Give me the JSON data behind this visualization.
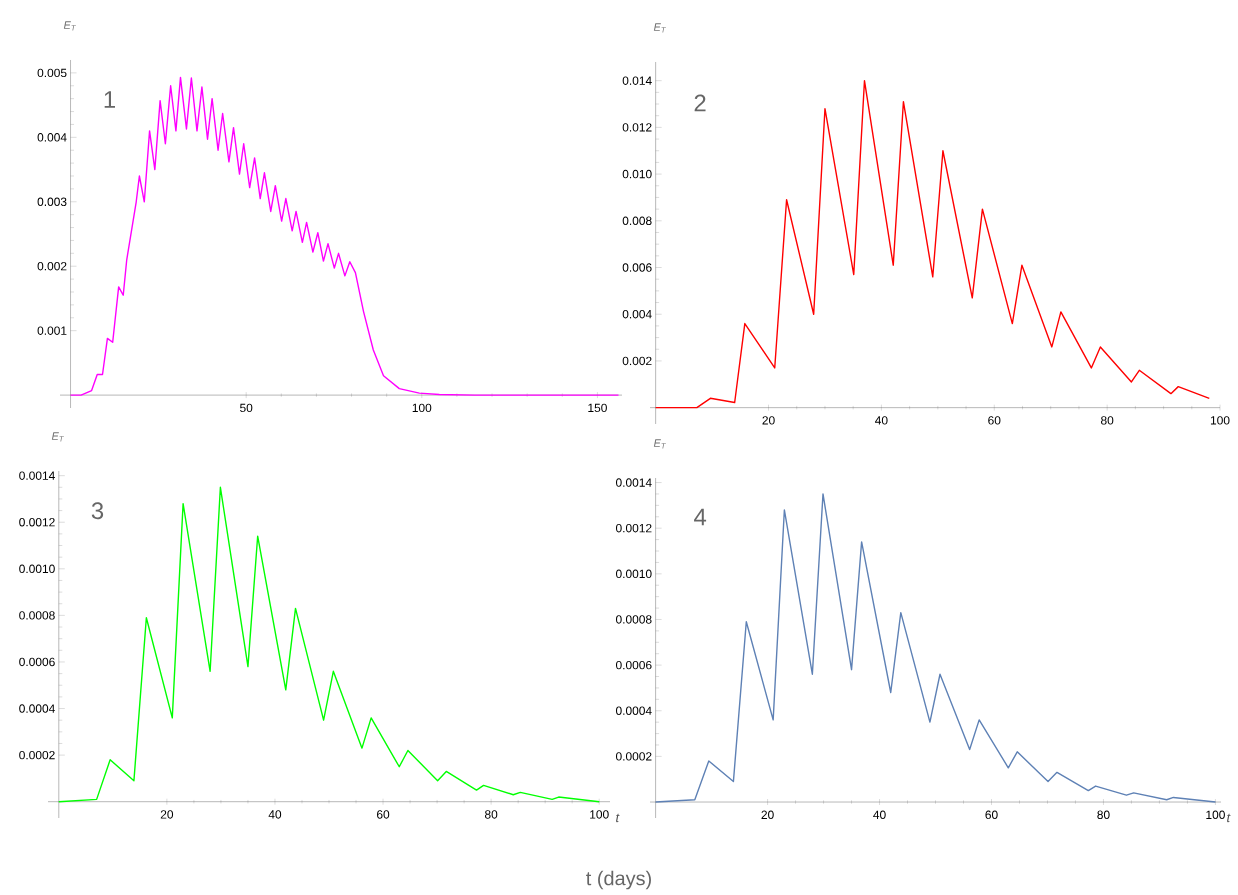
{
  "chart_data": [
    {
      "type": "line",
      "ylabel": "*E*$_{T}$",
      "annotations": [
        "1"
      ],
      "color": "#ff00ff",
      "x": [
        0,
        3,
        6,
        7.6,
        9.1,
        10.5,
        12,
        13.7,
        15,
        16,
        18.7,
        19.6,
        21,
        22.5,
        24,
        25.5,
        27,
        28.5,
        30,
        31.3,
        33,
        34.4,
        36,
        37.4,
        39,
        40.3,
        42,
        43.3,
        45.1,
        46.4,
        48.1,
        49.3,
        51,
        52.4,
        54,
        55.2,
        57,
        58.3,
        60.1,
        61.3,
        63.1,
        64.2,
        66,
        67.2,
        69,
        70.4,
        72,
        73.3,
        75.1,
        76.3,
        78.1,
        79.5,
        81.1,
        83.4,
        86.2,
        89.1,
        93.6,
        99.3,
        105,
        115,
        156
      ],
      "values": [
        0,
        0,
        7e-05,
        0.00032,
        0.00032,
        0.00088,
        0.00082,
        0.00168,
        0.00155,
        0.0021,
        0.003,
        0.0034,
        0.003,
        0.0041,
        0.0035,
        0.00457,
        0.0039,
        0.0048,
        0.0041,
        0.00493,
        0.00413,
        0.00492,
        0.0041,
        0.00478,
        0.00397,
        0.0046,
        0.0038,
        0.00437,
        0.00362,
        0.00415,
        0.00343,
        0.0039,
        0.00322,
        0.00368,
        0.00305,
        0.00345,
        0.00285,
        0.00325,
        0.0027,
        0.00305,
        0.00255,
        0.00285,
        0.00237,
        0.00268,
        0.00222,
        0.00252,
        0.00208,
        0.00235,
        0.00197,
        0.0022,
        0.00185,
        0.00207,
        0.0019,
        0.0013,
        0.0007,
        0.0003,
        0.0001,
        3e-05,
        1e-05,
        0,
        0
      ],
      "xlim": [
        -3,
        157
      ],
      "ylim": [
        -0.0002,
        0.0052
      ],
      "xticks": [
        50,
        100,
        150
      ],
      "yticks": [
        0.001,
        0.002,
        0.003,
        0.004,
        0.005
      ]
    },
    {
      "type": "line",
      "ylabel": "*E*$_{T}$",
      "annotations": [
        "2"
      ],
      "color": "#ff0000",
      "x": [
        0,
        7.3,
        9.7,
        14,
        15.8,
        21.1,
        23.2,
        28,
        30,
        35.1,
        37,
        42.1,
        43.9,
        49.1,
        50.9,
        56.1,
        57.9,
        63.2,
        64.9,
        70.2,
        71.8,
        77.2,
        78.8,
        84.3,
        85.7,
        91.3,
        92.6,
        98.1
      ],
      "values": [
        0,
        0,
        0.0004,
        0.00022,
        0.0036,
        0.0017,
        0.0089,
        0.004,
        0.0128,
        0.0057,
        0.014,
        0.0061,
        0.0131,
        0.0056,
        0.011,
        0.0047,
        0.0085,
        0.0036,
        0.0061,
        0.0026,
        0.0041,
        0.0017,
        0.0026,
        0.0011,
        0.0016,
        0.0006,
        0.0009,
        0.0004
      ],
      "xlim": [
        -1,
        100
      ],
      "ylim": [
        -0.0007,
        0.0148
      ],
      "xticks": [
        20,
        40,
        60,
        80,
        100
      ],
      "yticks": [
        {
          "value": 0.002,
          "label": "0.002"
        },
        {
          "value": 0.004,
          "label": "0.004"
        },
        {
          "value": 0.006,
          "label": "0.006"
        },
        {
          "value": 0.008,
          "label": "0.008"
        },
        {
          "value": 0.01,
          "label": "0.010"
        },
        {
          "value": 0.012,
          "label": "0.012"
        },
        {
          "value": 0.014,
          "label": "0.014"
        }
      ]
    },
    {
      "type": "line",
      "ylabel": "*E*$_{T}$",
      "xlabel": "t",
      "annotations": [
        "3",
        "t (days)"
      ],
      "color": "#00ff00",
      "x": [
        0,
        7,
        9.5,
        13.9,
        16.2,
        21,
        23,
        28,
        29.9,
        35,
        36.8,
        42,
        43.8,
        49,
        50.8,
        56.1,
        57.8,
        63,
        64.6,
        70.1,
        71.7,
        77.3,
        78.6,
        84.1,
        85.4,
        91.3,
        92.5,
        100
      ],
      "values": [
        0,
        1e-05,
        0.00018,
        9e-05,
        0.00079,
        0.00036,
        0.00128,
        0.00056,
        0.00135,
        0.00058,
        0.00114,
        0.00048,
        0.00083,
        0.00035,
        0.00056,
        0.00023,
        0.00036,
        0.00015,
        0.00022,
        9e-05,
        0.00013,
        5e-05,
        7e-05,
        3e-05,
        4e-05,
        1e-05,
        2e-05,
        0
      ],
      "xlim": [
        -2,
        102
      ],
      "ylim": [
        -7e-05,
        0.00142
      ],
      "xticks": [
        20,
        40,
        60,
        80,
        100
      ],
      "yticks": [
        0.0002,
        0.0004,
        0.0006,
        0.0008,
        {
          "value": 0.001,
          "label": "0.0010"
        },
        0.0012,
        0.0014
      ]
    },
    {
      "type": "line",
      "ylabel": "*E*$_{T}$",
      "xlabel": "t",
      "annotations": [
        "4"
      ],
      "color": "#5e81b5",
      "x": [
        0,
        7,
        9.5,
        13.9,
        16.2,
        21,
        23,
        28,
        29.9,
        35,
        36.8,
        42,
        43.8,
        49,
        50.8,
        56.1,
        57.8,
        63,
        64.6,
        70.1,
        71.7,
        77.3,
        78.6,
        84.1,
        85.4,
        91.3,
        92.5,
        100
      ],
      "values": [
        0,
        1e-05,
        0.00018,
        9e-05,
        0.00079,
        0.00036,
        0.00128,
        0.00056,
        0.00135,
        0.00058,
        0.00114,
        0.00048,
        0.00083,
        0.00035,
        0.00056,
        0.00023,
        0.00036,
        0.00015,
        0.00022,
        9e-05,
        0.00013,
        5e-05,
        7e-05,
        3e-05,
        4e-05,
        1e-05,
        2e-05,
        0
      ],
      "xlim": [
        -1,
        101
      ],
      "ylim": [
        -7e-05,
        0.00142
      ],
      "xticks": [
        20,
        40,
        60,
        80,
        100
      ],
      "yticks": [
        0.0002,
        0.0004,
        0.0006,
        0.0008,
        {
          "value": 0.001,
          "label": "0.0010"
        },
        0.0012,
        0.0014
      ]
    }
  ]
}
